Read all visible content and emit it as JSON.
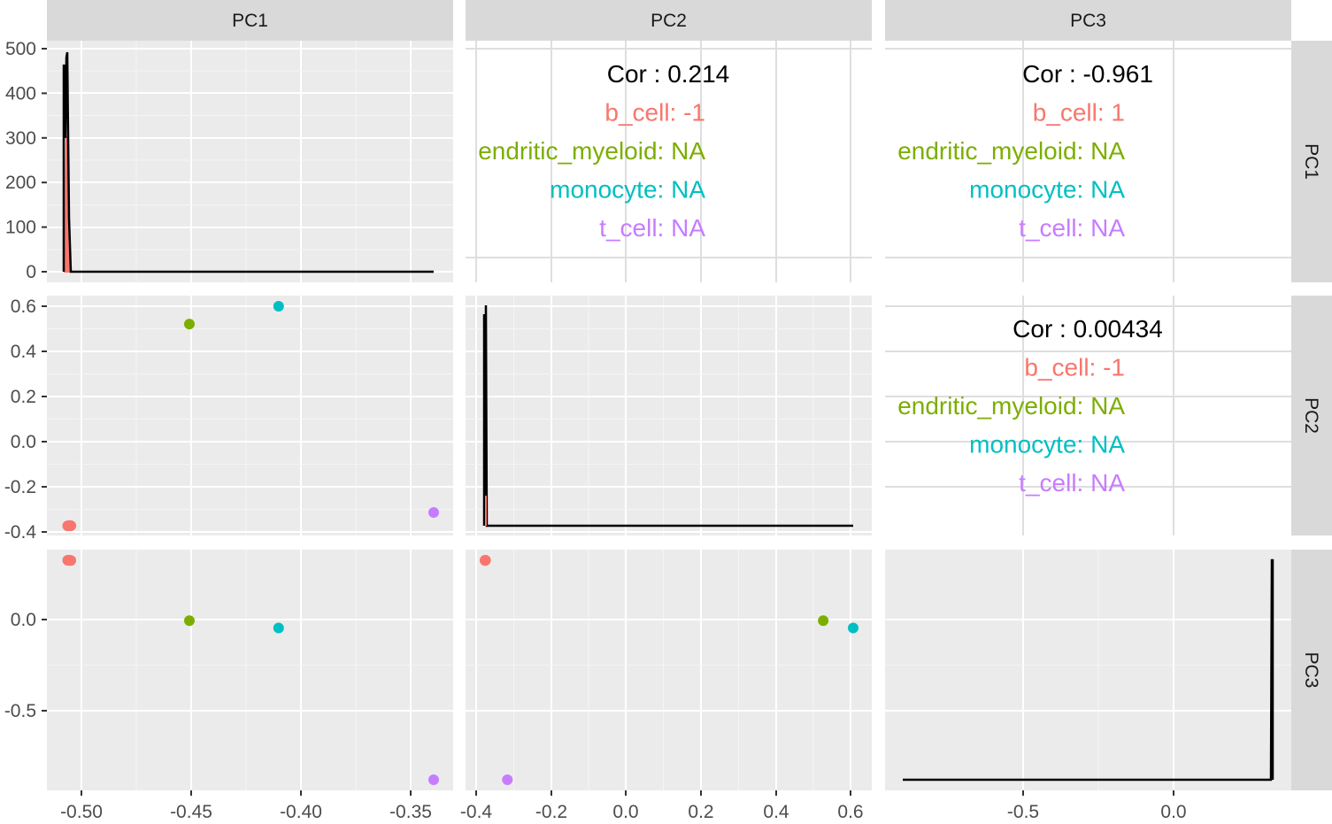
{
  "chart_data": {
    "type": "scatter",
    "matrix_type": "pairs plot",
    "variables": [
      "PC1",
      "PC2",
      "PC3"
    ],
    "groups": [
      {
        "name": "b_cell",
        "color": "#F8766D"
      },
      {
        "name": "dendritic_myeloid",
        "color": "#7CAE00"
      },
      {
        "name": "monocyte",
        "color": "#00BFC4"
      },
      {
        "name": "t_cell",
        "color": "#C77CFF"
      }
    ],
    "ranges": {
      "PC1": [
        -0.508,
        -0.335
      ],
      "PC2": [
        -0.372,
        0.599
      ],
      "PC3": [
        -0.903,
        0.333
      ]
    },
    "points": [
      {
        "group": "b_cell",
        "PC1": -0.5078,
        "PC2": -0.372,
        "PC3": 0.331
      },
      {
        "group": "b_cell",
        "PC1": -0.5072,
        "PC2": -0.3715,
        "PC3": 0.33
      },
      {
        "group": "b_cell",
        "PC1": -0.5068,
        "PC2": -0.3705,
        "PC3": 0.331
      },
      {
        "group": "b_cell",
        "PC1": -0.5063,
        "PC2": -0.3718,
        "PC3": 0.33
      },
      {
        "group": "dendritic_myeloid",
        "PC1": -0.4505,
        "PC2": 0.52,
        "PC3": -0.007
      },
      {
        "group": "monocyte",
        "PC1": -0.4085,
        "PC2": 0.599,
        "PC3": -0.048
      },
      {
        "group": "t_cell",
        "PC1": -0.3355,
        "PC2": -0.313,
        "PC3": -0.898
      }
    ],
    "density": {
      "PC1": {
        "y_ticks": [
          0,
          100,
          200,
          300,
          400,
          500
        ],
        "y_range": [
          0,
          500
        ],
        "peak_all": 492,
        "peak_b_cell": 305
      },
      "PC2": {
        "peak_fraction": 0.98
      },
      "PC3": {
        "peak_fraction": 0.98
      }
    },
    "correlations": {
      "PC1_PC2": {
        "overall": "Cor : 0.214",
        "b_cell": "b_cell: -1",
        "dendritic_myeloid": "endritic_myeloid: NA",
        "monocyte": "monocyte: NA",
        "t_cell": "t_cell: NA"
      },
      "PC1_PC3": {
        "overall": "Cor : -0.961",
        "b_cell": "b_cell: 1",
        "dendritic_myeloid": "endritic_myeloid: NA",
        "monocyte": "monocyte: NA",
        "t_cell": "t_cell: NA"
      },
      "PC2_PC3": {
        "overall": "Cor : 0.00434",
        "b_cell": "b_cell: -1",
        "dendritic_myeloid": "endritic_myeloid: NA",
        "monocyte": "monocyte: NA",
        "t_cell": "t_cell: NA"
      }
    },
    "x_ticks": {
      "PC1": [
        "-0.50",
        "-0.45",
        "-0.40",
        "-0.35"
      ],
      "PC2": [
        "-0.4",
        "-0.2",
        "0.0",
        "0.2",
        "0.4",
        "0.6"
      ],
      "PC3": [
        "-0.5",
        "0.0"
      ]
    },
    "y_ticks": {
      "PC2": [
        "0.6",
        "0.4",
        "0.2",
        "0.0",
        "-0.2",
        "-0.4"
      ],
      "PC3": [
        "0.0",
        "-0.5"
      ]
    },
    "grid": true,
    "panel_background": "#EBEBEB",
    "strip_background": "#D9D9D9",
    "legend": "none"
  }
}
